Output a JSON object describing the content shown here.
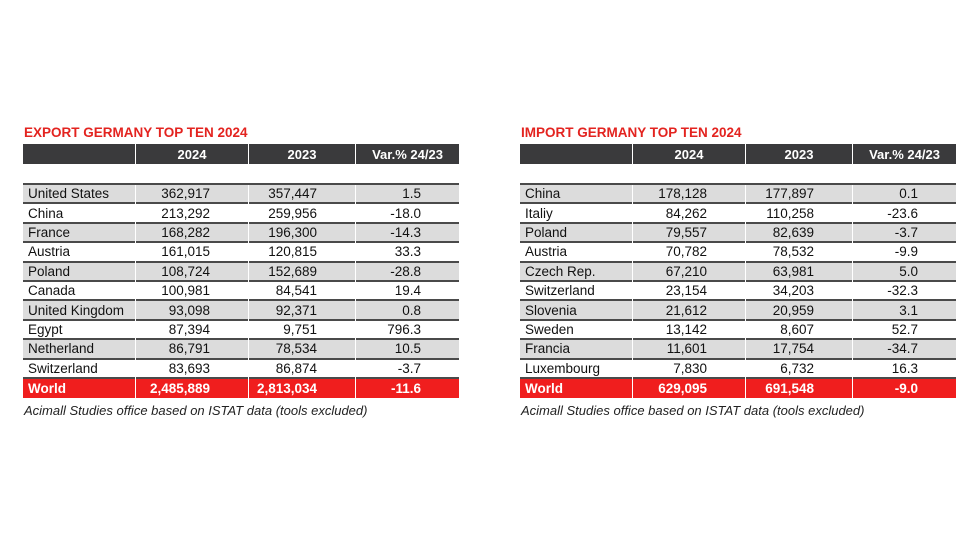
{
  "export": {
    "title": "EXPORT GERMANY TOP TEN 2024",
    "headers": [
      "",
      "2024",
      "2023",
      "Var.% 24/23"
    ],
    "rows": [
      [
        "United States",
        "362,917",
        "357,447",
        "1.5"
      ],
      [
        "China",
        "213,292",
        "259,956",
        "-18.0"
      ],
      [
        "France",
        "168,282",
        "196,300",
        "-14.3"
      ],
      [
        "Austria",
        "161,015",
        "120,815",
        "33.3"
      ],
      [
        "Poland",
        "108,724",
        "152,689",
        "-28.8"
      ],
      [
        "Canada",
        "100,981",
        "84,541",
        "19.4"
      ],
      [
        "United Kingdom",
        "93,098",
        "92,371",
        "0.8"
      ],
      [
        "Egypt",
        "87,394",
        "9,751",
        "796.3"
      ],
      [
        "Netherland",
        "86,791",
        "78,534",
        "10.5"
      ],
      [
        "Switzerland",
        "83,693",
        "86,874",
        "-3.7"
      ]
    ],
    "total": [
      "World",
      "2,485,889",
      "2,813,034",
      "-11.6"
    ],
    "caption": "Acimall Studies office based on ISTAT data (tools excluded)"
  },
  "import": {
    "title": "IMPORT GERMANY TOP TEN 2024",
    "headers": [
      "",
      "2024",
      "2023",
      "Var.% 24/23"
    ],
    "rows": [
      [
        "China",
        "178,128",
        "177,897",
        "0.1"
      ],
      [
        "Italiy",
        "84,262",
        "110,258",
        "-23.6"
      ],
      [
        "Poland",
        "79,557",
        "82,639",
        "-3.7"
      ],
      [
        "Austria",
        "70,782",
        "78,532",
        "-9.9"
      ],
      [
        "Czech Rep.",
        "67,210",
        "63,981",
        "5.0"
      ],
      [
        "Switzerland",
        "23,154",
        "34,203",
        "-32.3"
      ],
      [
        "Slovenia",
        "21,612",
        "20,959",
        "3.1"
      ],
      [
        "Sweden",
        "13,142",
        "8,607",
        "52.7"
      ],
      [
        "Francia",
        "11,601",
        "17,754",
        "-34.7"
      ],
      [
        "Luxembourg",
        "7,830",
        "6,732",
        "16.3"
      ]
    ],
    "total": [
      "World",
      "629,095",
      "691,548",
      "-9.0"
    ],
    "caption": "Acimall Studies office based on ISTAT data (tools excluded)"
  },
  "colors": {
    "accent": "#e3231f",
    "header_bg": "#3a3a3c",
    "total_bg": "#f01e1e",
    "stripe": "#dcdcdc"
  }
}
